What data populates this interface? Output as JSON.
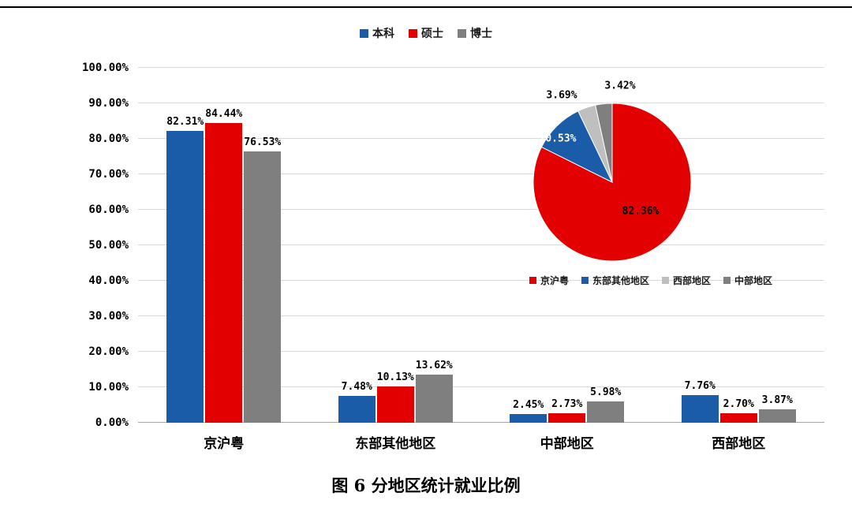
{
  "page": {
    "caption": "图 6 分地区统计就业比例",
    "background": "#ffffff"
  },
  "colors": {
    "blue": "#1A5CA8",
    "red": "#E30000",
    "gray": "#7F7F7F",
    "light_gray": "#BFBFBF",
    "gridline": "#D9D9D9",
    "axis_line": "#A6A6A6",
    "label": "#000000"
  },
  "chart_data": [
    {
      "type": "bar",
      "title": "",
      "xlabel": "",
      "ylabel": "",
      "categories": [
        "京沪粤",
        "东部其他地区",
        "中部地区",
        "西部地区"
      ],
      "series": [
        {
          "name": "本科",
          "color_key": "blue",
          "values": [
            82.31,
            7.48,
            2.45,
            7.76
          ]
        },
        {
          "name": "硕士",
          "color_key": "red",
          "values": [
            84.44,
            10.13,
            2.73,
            2.7
          ]
        },
        {
          "name": "博士",
          "color_key": "gray",
          "values": [
            76.53,
            13.62,
            5.98,
            3.87
          ]
        }
      ],
      "ylim": [
        0,
        100
      ],
      "ytick_step": 10,
      "ytick_labels": [
        "0.00%",
        "10.00%",
        "20.00%",
        "30.00%",
        "40.00%",
        "50.00%",
        "60.00%",
        "70.00%",
        "80.00%",
        "90.00%",
        "100.00%"
      ],
      "value_label_suffix": "%",
      "grid": true,
      "legend_position": "top"
    },
    {
      "type": "pie",
      "start_angle_deg": 0,
      "direction": "clockwise",
      "legend_position": "bottom",
      "slices": [
        {
          "label": "京沪粤",
          "value": 82.36,
          "display": "82.36%",
          "color_key": "red"
        },
        {
          "label": "东部其他地区",
          "value": 10.53,
          "display": "10.53%",
          "color_key": "blue"
        },
        {
          "label": "西部地区",
          "value": 3.69,
          "display": "3.69%",
          "color_key": "light_gray"
        },
        {
          "label": "中部地区",
          "value": 3.42,
          "display": "3.42%",
          "color_key": "gray"
        }
      ]
    }
  ]
}
